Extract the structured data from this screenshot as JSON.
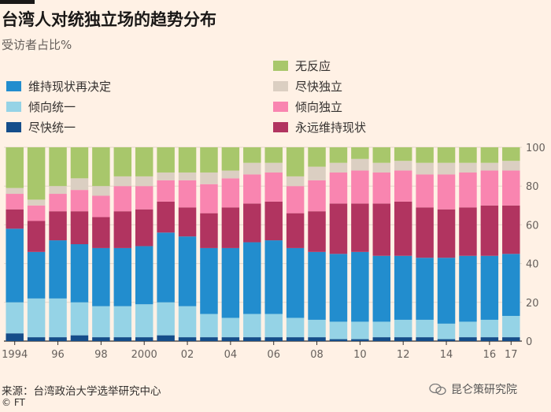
{
  "title": "台湾人对统独立场的趋势分布",
  "subtitle": "受访者占比%",
  "source": "来源：台湾政治大学选举研究中心",
  "copyright": "© FT",
  "watermark": "昆仑策研究院",
  "colors": {
    "background": "#fff1e5",
    "无反应": "#a8c76b",
    "尽快独立": "#dbcfc2",
    "倾向独立": "#f985b0",
    "永远维持现状": "#b13460",
    "维持现状再决定": "#228dce",
    "倾向统一": "#95d3e6",
    "尽快统一": "#154d8a"
  },
  "legend": {
    "right": [
      "无反应",
      "尽快独立",
      "倾向独立",
      "永远维持现状"
    ],
    "left": [
      "维持现状再决定",
      "倾向统一",
      "尽快统一"
    ]
  },
  "chart_data": {
    "type": "bar",
    "stacked": true,
    "orientation": "vertical",
    "categories": [
      "1994",
      "1995",
      "1996",
      "1997",
      "1998",
      "1999",
      "2000",
      "2001",
      "2002",
      "2003",
      "2004",
      "2005",
      "2006",
      "2007",
      "2008",
      "2009",
      "2010",
      "2011",
      "2012",
      "2013",
      "2014",
      "2015",
      "2016",
      "2017"
    ],
    "x_tick_labels": [
      "1994",
      "",
      "96",
      "",
      "98",
      "",
      "2000",
      "",
      "02",
      "",
      "04",
      "",
      "06",
      "",
      "08",
      "",
      "10",
      "",
      "12",
      "",
      "14",
      "",
      "16",
      "17"
    ],
    "ylim": [
      0,
      100
    ],
    "yticks": [
      0,
      20,
      40,
      60,
      80,
      100
    ],
    "grid": true,
    "y_axis_side": "right",
    "series": [
      {
        "name": "尽快统一",
        "values": [
          4,
          2,
          2,
          3,
          2,
          2,
          2,
          3,
          2,
          2,
          2,
          2,
          2,
          2,
          2,
          1,
          1,
          2,
          2,
          2,
          1,
          2,
          2,
          2
        ]
      },
      {
        "name": "倾向统一",
        "values": [
          16,
          20,
          20,
          17,
          16,
          16,
          17,
          17,
          16,
          12,
          10,
          12,
          12,
          10,
          9,
          9,
          9,
          8,
          9,
          9,
          8,
          8,
          9,
          11
        ]
      },
      {
        "name": "维持现状再决定",
        "values": [
          38,
          24,
          30,
          30,
          30,
          30,
          30,
          36,
          36,
          34,
          36,
          37,
          38,
          36,
          35,
          35,
          36,
          34,
          33,
          32,
          34,
          34,
          33,
          32
        ]
      },
      {
        "name": "永远维持现状",
        "values": [
          10,
          16,
          15,
          17,
          16,
          19,
          19,
          16,
          15,
          18,
          21,
          20,
          20,
          18,
          21,
          26,
          25,
          27,
          28,
          26,
          25,
          25,
          26,
          25
        ]
      },
      {
        "name": "倾向独立",
        "values": [
          8,
          8,
          9,
          11,
          11,
          13,
          12,
          11,
          14,
          15,
          15,
          15,
          15,
          14,
          16,
          16,
          17,
          16,
          16,
          17,
          18,
          18,
          18,
          18
        ]
      },
      {
        "name": "尽快独立",
        "values": [
          3,
          3,
          4,
          6,
          5,
          5,
          5,
          4,
          4,
          6,
          4,
          6,
          5,
          5,
          7,
          5,
          6,
          5,
          5,
          6,
          6,
          5,
          4,
          5
        ]
      },
      {
        "name": "无反应",
        "values": [
          21,
          27,
          20,
          16,
          20,
          15,
          15,
          13,
          13,
          13,
          12,
          8,
          8,
          15,
          10,
          8,
          6,
          8,
          7,
          8,
          8,
          8,
          8,
          7
        ]
      }
    ],
    "xlabel": "",
    "ylabel": ""
  }
}
